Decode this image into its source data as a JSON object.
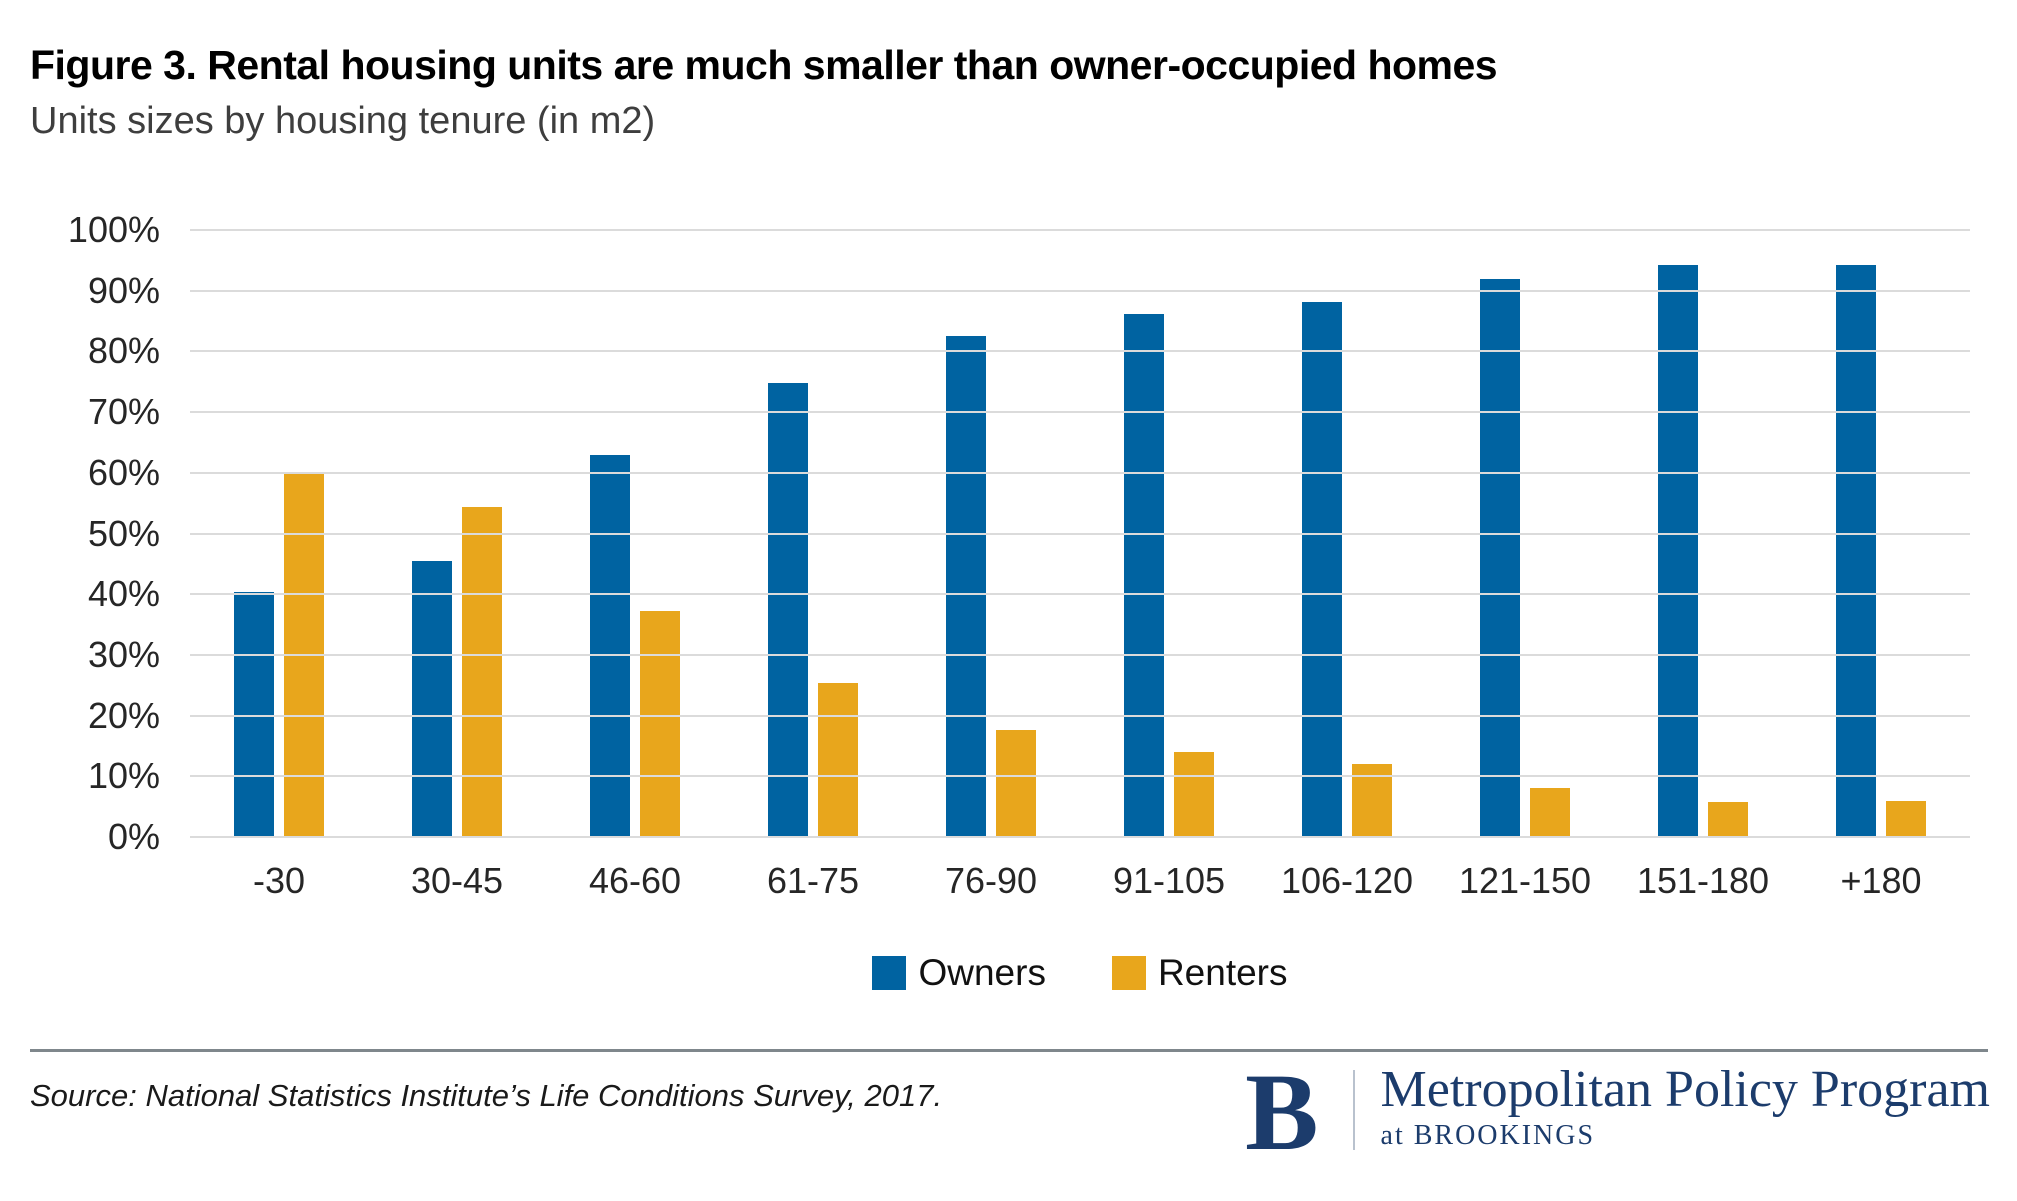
{
  "header": {
    "title": "Figure 3. Rental housing units are much smaller than owner-occupied homes",
    "subtitle": "Units sizes by housing tenure (in m2)"
  },
  "chart_data": {
    "type": "bar",
    "title": "Units sizes by housing tenure (in m2)",
    "categories": [
      "-30",
      "30-45",
      "46-60",
      "61-75",
      "76-90",
      "91-105",
      "106-120",
      "121-150",
      "151-180",
      "+180"
    ],
    "series": [
      {
        "name": "Owners",
        "color": "#0063a1",
        "values": [
          40.3,
          45.5,
          63,
          74.8,
          82.5,
          86.2,
          88.2,
          92,
          94.2,
          94.2
        ]
      },
      {
        "name": "Renters",
        "color": "#e8a61c",
        "values": [
          60,
          54.3,
          37.2,
          25.3,
          17.6,
          14,
          12,
          8,
          5.7,
          5.9
        ]
      }
    ],
    "xlabel": "",
    "ylabel": "",
    "ylim": [
      0,
      100
    ],
    "y_ticks": [
      "100%",
      "90%",
      "80%",
      "70%",
      "60%",
      "50%",
      "40%",
      "30%",
      "20%",
      "10%",
      "0%"
    ],
    "grid": true,
    "gridline_color": "#dbdbdb",
    "legend_position": "bottom-center"
  },
  "footer": {
    "source": "Source: National Statistics Institute’s Life Conditions Survey, 2017.",
    "logo": {
      "letter": "B",
      "program": "Metropolitan Policy Program",
      "sub": "at BROOKINGS",
      "color": "#1c3c6c"
    }
  }
}
